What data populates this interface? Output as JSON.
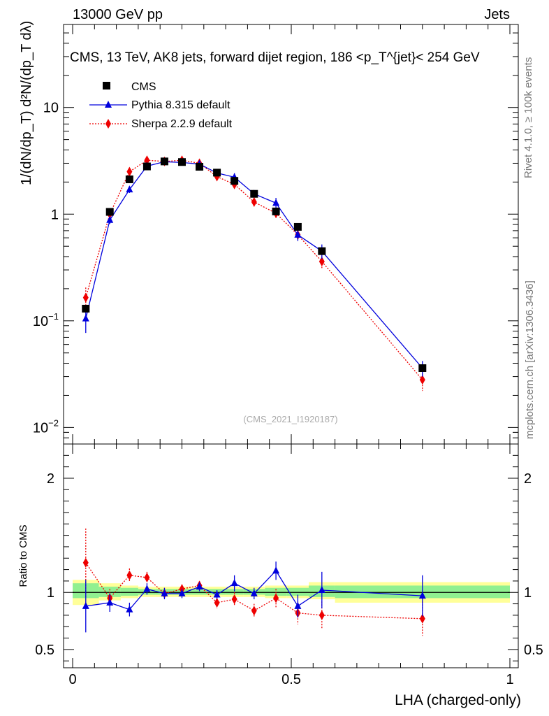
{
  "header": {
    "left": "13000 GeV pp",
    "right": "Jets"
  },
  "side_text": {
    "rivet": "Rivet 4.1.0, ≥ 100k events",
    "mcplots": "mcplots.cern.ch [arXiv:1306.3436]"
  },
  "analysis_tag": "(CMS_2021_I1920187)",
  "colors": {
    "cms": "#000000",
    "pythia": "#0000dd",
    "sherpa": "#ee0000",
    "band_inner": "#90f090",
    "band_outer": "#ffff99"
  },
  "chart_data": [
    {
      "type": "scatter",
      "title": "CMS, 13 TeV, AK8 jets, forward dijet region, 186 <p_T^{jet}< 254 GeV",
      "ylabel": "1/(dN/dp_T) d²N/(dp_T dλ)",
      "xlabel": "",
      "yscale": "log",
      "xlim": [
        0,
        1
      ],
      "ylim": [
        0.007,
        60
      ],
      "yticks": [
        {
          "value": 0.01,
          "base": "10",
          "exp": "−2"
        },
        {
          "value": 0.1,
          "base": "10",
          "exp": "−1"
        },
        {
          "value": 1,
          "base": "1",
          "exp": ""
        },
        {
          "value": 10,
          "base": "10",
          "exp": ""
        }
      ],
      "legend": [
        "CMS",
        "Pythia 8.315 default",
        "Sherpa 2.2.9 default"
      ],
      "legend_position": "top-left",
      "series": [
        {
          "name": "CMS",
          "marker": "square",
          "x": [
            0.03,
            0.085,
            0.13,
            0.17,
            0.21,
            0.25,
            0.29,
            0.33,
            0.37,
            0.415,
            0.465,
            0.515,
            0.57,
            0.8
          ],
          "values": [
            0.13,
            1.05,
            2.12,
            2.8,
            3.12,
            3.08,
            2.78,
            2.45,
            2.05,
            1.55,
            1.06,
            0.76,
            0.45,
            0.036
          ]
        },
        {
          "name": "Pythia 8.315 default",
          "marker": "triangle",
          "line": "solid",
          "x": [
            0.03,
            0.085,
            0.13,
            0.17,
            0.21,
            0.25,
            0.29,
            0.33,
            0.37,
            0.415,
            0.465,
            0.515,
            0.57,
            0.8
          ],
          "values": [
            0.105,
            0.88,
            1.7,
            2.82,
            3.1,
            3.05,
            2.95,
            2.43,
            2.22,
            1.55,
            1.27,
            0.64,
            0.45,
            0.036
          ],
          "errors": [
            0.028,
            0.07,
            0.12,
            0.15,
            0.15,
            0.12,
            0.12,
            0.12,
            0.2,
            0.1,
            0.15,
            0.08,
            0.07,
            0.006
          ]
        },
        {
          "name": "Sherpa 2.2.9 default",
          "marker": "diamond",
          "line": "dotted",
          "x": [
            0.03,
            0.085,
            0.13,
            0.17,
            0.21,
            0.25,
            0.29,
            0.33,
            0.37,
            0.415,
            0.465,
            0.515,
            0.57,
            0.8
          ],
          "values": [
            0.165,
            1.0,
            2.5,
            3.2,
            3.12,
            3.2,
            3.0,
            2.25,
            1.9,
            1.3,
            1.02,
            0.64,
            0.36,
            0.028
          ],
          "errors": [
            0.04,
            0.08,
            0.15,
            0.15,
            0.15,
            0.12,
            0.15,
            0.12,
            0.15,
            0.12,
            0.1,
            0.06,
            0.05,
            0.006
          ]
        }
      ]
    },
    {
      "type": "scatter",
      "title": "",
      "xlabel": "LHA (charged-only)",
      "ylabel": "Ratio to CMS",
      "xlim": [
        0,
        1
      ],
      "ylim": [
        0.34,
        2.3
      ],
      "xticks": [
        {
          "value": 0,
          "label": "0"
        },
        {
          "value": 0.5,
          "label": "0.5"
        },
        {
          "value": 1,
          "label": "1"
        }
      ],
      "yticks": [
        {
          "value": 0.5,
          "label": "0.5"
        },
        {
          "value": 1,
          "label": "1"
        },
        {
          "value": 2,
          "label": "2"
        }
      ],
      "bands": [
        {
          "x0": 0.0,
          "x1": 0.06,
          "inner": [
            0.95,
            1.08
          ],
          "outer": [
            0.89,
            1.11
          ]
        },
        {
          "x0": 0.06,
          "x1": 0.11,
          "inner": [
            0.96,
            1.05
          ],
          "outer": [
            0.93,
            1.08
          ]
        },
        {
          "x0": 0.11,
          "x1": 0.15,
          "inner": [
            0.97,
            1.04
          ],
          "outer": [
            0.95,
            1.06
          ]
        },
        {
          "x0": 0.15,
          "x1": 0.19,
          "inner": [
            0.98,
            1.03
          ],
          "outer": [
            0.96,
            1.05
          ]
        },
        {
          "x0": 0.19,
          "x1": 0.23,
          "inner": [
            0.98,
            1.03
          ],
          "outer": [
            0.96,
            1.05
          ]
        },
        {
          "x0": 0.23,
          "x1": 0.27,
          "inner": [
            0.98,
            1.03
          ],
          "outer": [
            0.96,
            1.05
          ]
        },
        {
          "x0": 0.27,
          "x1": 0.31,
          "inner": [
            0.98,
            1.03
          ],
          "outer": [
            0.96,
            1.05
          ]
        },
        {
          "x0": 0.31,
          "x1": 0.35,
          "inner": [
            0.98,
            1.03
          ],
          "outer": [
            0.96,
            1.05
          ]
        },
        {
          "x0": 0.35,
          "x1": 0.39,
          "inner": [
            0.98,
            1.03
          ],
          "outer": [
            0.96,
            1.05
          ]
        },
        {
          "x0": 0.39,
          "x1": 0.44,
          "inner": [
            0.98,
            1.03
          ],
          "outer": [
            0.96,
            1.05
          ]
        },
        {
          "x0": 0.44,
          "x1": 0.49,
          "inner": [
            0.97,
            1.04
          ],
          "outer": [
            0.95,
            1.06
          ]
        },
        {
          "x0": 0.49,
          "x1": 0.54,
          "inner": [
            0.97,
            1.04
          ],
          "outer": [
            0.95,
            1.06
          ]
        },
        {
          "x0": 0.54,
          "x1": 0.6,
          "inner": [
            0.96,
            1.06
          ],
          "outer": [
            0.94,
            1.09
          ]
        },
        {
          "x0": 0.6,
          "x1": 1.0,
          "inner": [
            0.95,
            1.06
          ],
          "outer": [
            0.91,
            1.09
          ]
        }
      ],
      "series": [
        {
          "name": "Pythia 8.315 default",
          "marker": "triangle",
          "line": "solid",
          "x": [
            0.03,
            0.085,
            0.13,
            0.17,
            0.21,
            0.25,
            0.29,
            0.33,
            0.37,
            0.415,
            0.465,
            0.515,
            0.57,
            0.8
          ],
          "values": [
            0.88,
            0.91,
            0.85,
            1.03,
            0.99,
            0.99,
            1.05,
            0.98,
            1.08,
            0.99,
            1.19,
            0.88,
            1.02,
            0.97
          ],
          "errors": [
            0.23,
            0.08,
            0.06,
            0.05,
            0.05,
            0.04,
            0.04,
            0.04,
            0.07,
            0.05,
            0.08,
            0.1,
            0.16,
            0.18
          ]
        },
        {
          "name": "Sherpa 2.2.9 default",
          "marker": "diamond",
          "line": "dotted",
          "x": [
            0.03,
            0.085,
            0.13,
            0.17,
            0.21,
            0.25,
            0.29,
            0.33,
            0.37,
            0.415,
            0.465,
            0.515,
            0.57,
            0.8
          ],
          "values": [
            1.26,
            0.95,
            1.15,
            1.13,
            0.99,
            1.03,
            1.06,
            0.91,
            0.94,
            0.84,
            0.95,
            0.82,
            0.8,
            0.77
          ],
          "errors": [
            0.3,
            0.08,
            0.06,
            0.05,
            0.05,
            0.04,
            0.04,
            0.05,
            0.06,
            0.06,
            0.08,
            0.1,
            0.12,
            0.15
          ]
        }
      ]
    }
  ]
}
